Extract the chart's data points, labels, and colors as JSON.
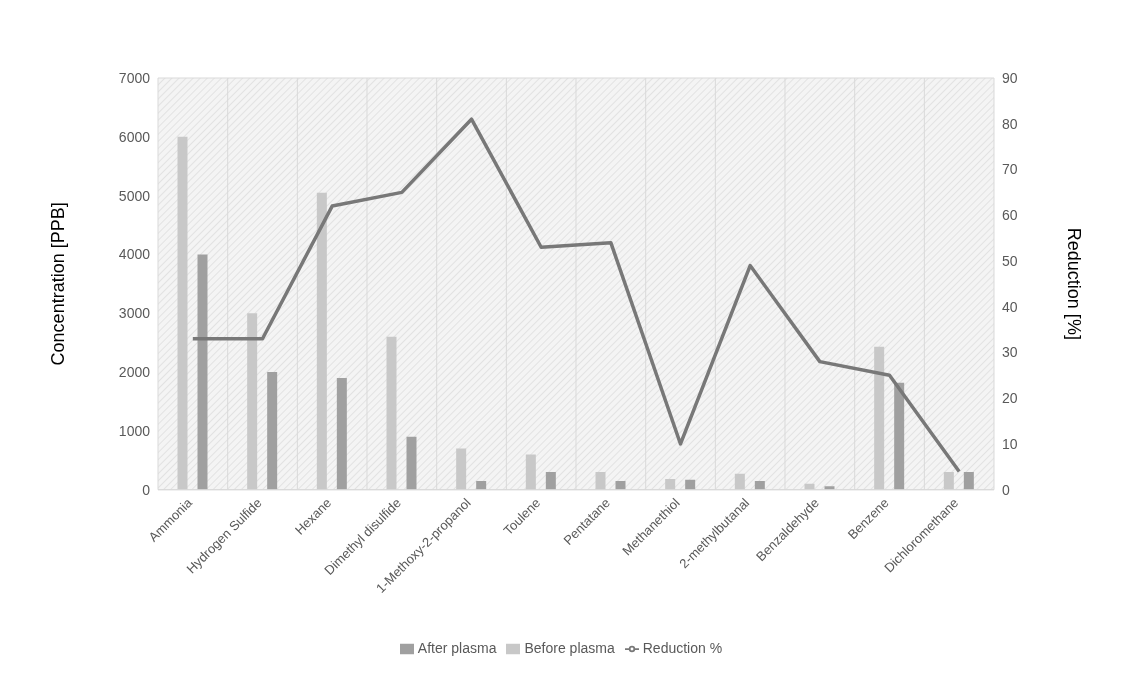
{
  "chart_data": {
    "type": "bar",
    "ylabel": "Concentration [PPB]",
    "y2label": "Reduction [%]",
    "categories": [
      "Ammonia",
      "Hydrogen Sulfide",
      "Hexane",
      "Dimethyl disulfide",
      "1-Methoxy-2-propanol",
      "Toulene",
      "Pentatane",
      "Methanethiol",
      "2-methylbutanal",
      "Benzaldehyde",
      "Benzene",
      "Dichloromethane"
    ],
    "series": [
      {
        "name": "Before plasma",
        "color": "#c8c8c8",
        "values": [
          6000,
          3000,
          5050,
          2600,
          700,
          600,
          300,
          180,
          270,
          100,
          2430,
          300
        ]
      },
      {
        "name": "After plasma",
        "color": "#a0a0a0",
        "values": [
          4000,
          2000,
          1900,
          900,
          150,
          300,
          150,
          170,
          150,
          60,
          1820,
          300
        ]
      },
      {
        "name": "Reduction %",
        "type": "line",
        "axis": "y2",
        "color": "#787878",
        "values": [
          33,
          33,
          62,
          65,
          81,
          53,
          54,
          10,
          49,
          28,
          25,
          4
        ]
      }
    ],
    "ylim": [
      0,
      7000
    ],
    "yticks": [
      0,
      1000,
      2000,
      3000,
      4000,
      5000,
      6000,
      7000
    ],
    "y2lim": [
      0,
      90
    ],
    "y2ticks": [
      0,
      10,
      20,
      30,
      40,
      50,
      60,
      70,
      80,
      90
    ],
    "grid": true,
    "legend": "bottom",
    "marker": "none",
    "line_style": "solid"
  }
}
